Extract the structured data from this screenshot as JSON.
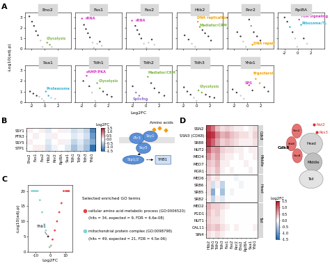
{
  "panel_labels": [
    "A",
    "B",
    "C",
    "D"
  ],
  "A_axis_labels": {
    "x": "Log2FC",
    "y": "-Log10(adj.p)"
  },
  "chart_data": [
    {
      "type": "scatter",
      "title": "Eno2",
      "tick_labels": "y",
      "x": [
        -2.3,
        -1.9,
        -1.6,
        -1.3,
        -1.0,
        -0.6,
        0.4,
        0.8,
        -0.3,
        1.1
      ],
      "y": [
        3.1,
        2.6,
        2.2,
        1.7,
        1.3,
        0.8,
        0.6,
        0.4,
        0.2,
        0.2
      ],
      "colors": [
        "#3d3d3d",
        "#3d3d3d",
        "#3d3d3d",
        "#3d3d3d",
        "#3d3d3d",
        "#c9c9c9",
        "#7cb342",
        "#7cb342",
        "#c9c9c9",
        "#c9c9c9"
      ],
      "xlim": [
        -3,
        4
      ],
      "ylim": [
        0,
        3.5
      ],
      "xticks": [
        -2,
        0,
        2
      ],
      "yticks": [
        0,
        1,
        2,
        3
      ],
      "annotations": [
        {
          "text": "Glycolysis",
          "x": 0.3,
          "y": 0.9,
          "color": "#7cb342"
        }
      ]
    },
    {
      "type": "scatter",
      "title": "Fas1",
      "tick_labels": false,
      "x": [
        -2.0,
        -1.7,
        -1.4,
        -1.1,
        -0.8,
        -0.4,
        0.3,
        0.7,
        1.0,
        -0.2
      ],
      "y": [
        2.9,
        2.3,
        1.9,
        1.5,
        1.1,
        0.6,
        0.5,
        0.7,
        0.3,
        0.1
      ],
      "colors": [
        "#d633c2",
        "#3d3d3d",
        "#3d3d3d",
        "#3d3d3d",
        "#3d3d3d",
        "#c9c9c9",
        "#c9c9c9",
        "#3d3d3d",
        "#c9c9c9",
        "#c9c9c9"
      ],
      "xlim": [
        -3,
        4
      ],
      "ylim": [
        0,
        3.5
      ],
      "xticks": [
        -2,
        0,
        2
      ],
      "yticks": [
        0,
        1,
        2,
        3
      ],
      "annotations": [
        {
          "text": "rRNA",
          "x": -1.5,
          "y": 2.8,
          "color": "#d633c2"
        }
      ]
    },
    {
      "type": "scatter",
      "title": "Fas2",
      "tick_labels": false,
      "x": [
        -2.1,
        -1.6,
        -1.3,
        -1.0,
        -0.7,
        -0.3,
        0.4,
        0.9,
        1.3,
        0.1
      ],
      "y": [
        2.7,
        2.2,
        1.8,
        1.4,
        1.0,
        0.5,
        0.6,
        0.9,
        0.4,
        0.1
      ],
      "colors": [
        "#d633c2",
        "#3d3d3d",
        "#3d3d3d",
        "#3d3d3d",
        "#3d3d3d",
        "#c9c9c9",
        "#c9c9c9",
        "#3d3d3d",
        "#c9c9c9",
        "#c9c9c9"
      ],
      "xlim": [
        -3,
        4
      ],
      "ylim": [
        0,
        3.5
      ],
      "xticks": [
        -2,
        0,
        2
      ],
      "yticks": [
        0,
        1,
        2,
        3
      ],
      "annotations": [
        {
          "text": "rRNA",
          "x": -1.6,
          "y": 2.6,
          "color": "#d633c2"
        }
      ]
    },
    {
      "type": "scatter",
      "title": "Htb2",
      "tick_labels": false,
      "x": [
        -1.8,
        -1.2,
        -0.7,
        0.2,
        0.5,
        0.9,
        1.3,
        1.8,
        2.2,
        -0.2
      ],
      "y": [
        1.3,
        0.9,
        0.5,
        2.6,
        2.1,
        1.8,
        1.5,
        1.2,
        0.8,
        0.2
      ],
      "colors": [
        "#3d3d3d",
        "#3d3d3d",
        "#c9c9c9",
        "#f0a000",
        "#7cb342",
        "#3d3d3d",
        "#3d3d3d",
        "#3d3d3d",
        "#3d3d3d",
        "#c9c9c9"
      ],
      "xlim": [
        -3,
        4
      ],
      "ylim": [
        0,
        3.5
      ],
      "xticks": [
        -2,
        0,
        2
      ],
      "yticks": [
        0,
        1,
        2,
        3
      ],
      "annotations": [
        {
          "text": "DNA replication",
          "x": 0.1,
          "y": 2.9,
          "color": "#f0a000"
        },
        {
          "text": "Mediator/CRM",
          "x": 0.4,
          "y": 2.2,
          "color": "#7cb342"
        }
      ]
    },
    {
      "type": "scatter",
      "title": "Rnr2",
      "tick_labels": false,
      "x": [
        -1.5,
        -1.0,
        -0.6,
        0.3,
        0.6,
        1.0,
        1.5,
        2.0,
        -0.2,
        0.8
      ],
      "y": [
        1.6,
        1.2,
        0.7,
        2.8,
        2.2,
        1.6,
        1.2,
        0.8,
        0.2,
        0.4
      ],
      "colors": [
        "#3d3d3d",
        "#3d3d3d",
        "#c9c9c9",
        "#3d3d3d",
        "#7cb342",
        "#3d3d3d",
        "#3d3d3d",
        "#3d3d3d",
        "#c9c9c9",
        "#f0a000"
      ],
      "xlim": [
        -3,
        4
      ],
      "ylim": [
        0,
        3.5
      ],
      "xticks": [
        -2,
        0,
        2
      ],
      "yticks": [
        0,
        1,
        2,
        3
      ],
      "annotations": [
        {
          "text": "DNA repair",
          "x": 0.9,
          "y": 0.45,
          "color": "#f0a000"
        }
      ]
    },
    {
      "type": "scatter",
      "title": "Rpl8A",
      "tick_labels": "x",
      "x": [
        -2.0,
        -1.6,
        -1.2,
        -0.8,
        -0.4,
        0.2,
        0.5,
        0.9,
        1.4,
        -0.1
      ],
      "y": [
        3.0,
        2.6,
        2.1,
        1.6,
        1.0,
        2.8,
        2.3,
        1.0,
        0.5,
        0.2
      ],
      "colors": [
        "#3d3d3d",
        "#3d3d3d",
        "#2fb3d3",
        "#3d3d3d",
        "#c9c9c9",
        "#d633c2",
        "#2fb3d3",
        "#3d3d3d",
        "#c9c9c9",
        "#c9c9c9"
      ],
      "xlim": [
        -3,
        4
      ],
      "ylim": [
        0,
        3.5
      ],
      "xticks": [
        -2,
        0,
        2
      ],
      "yticks": [
        0,
        1,
        2,
        3
      ],
      "annotations": [
        {
          "text": "TOR signaling",
          "x": 0.4,
          "y": 3.0,
          "color": "#d633c2"
        },
        {
          "text": "Ribosome/TL",
          "x": 0.6,
          "y": 2.35,
          "color": "#2fb3d3"
        }
      ]
    },
    {
      "type": "scatter",
      "title": "Ssa1",
      "tick_labels": true,
      "x": [
        -2.2,
        -1.7,
        -1.2,
        -0.8,
        -0.4,
        0.2,
        0.6,
        1.0,
        1.6,
        -0.1
      ],
      "y": [
        1.0,
        0.8,
        0.6,
        0.5,
        0.3,
        1.0,
        0.6,
        0.4,
        0.3,
        0.1
      ],
      "colors": [
        "#3d3d3d",
        "#3d3d3d",
        "#3d3d3d",
        "#c9c9c9",
        "#c9c9c9",
        "#2fb3d3",
        "#2fb3d3",
        "#c9c9c9",
        "#c9c9c9",
        "#c9c9c9"
      ],
      "xlim": [
        -3,
        4
      ],
      "ylim": [
        0,
        3.5
      ],
      "xticks": [
        -2,
        0,
        2
      ],
      "yticks": [
        0,
        1,
        2,
        3
      ],
      "annotations": [
        {
          "text": "Proteasome",
          "x": 0.3,
          "y": 1.2,
          "color": "#2fb3d3"
        }
      ]
    },
    {
      "type": "scatter",
      "title": "Tdh1",
      "tick_labels": "x",
      "x": [
        -1.8,
        -1.3,
        -0.9,
        -0.5,
        0.3,
        0.7,
        1.2,
        1.8,
        2.5,
        0.0
      ],
      "y": [
        2.0,
        2.5,
        1.5,
        0.9,
        1.8,
        1.3,
        1.0,
        0.7,
        0.5,
        0.1
      ],
      "colors": [
        "#3d3d3d",
        "#d633c2",
        "#3d3d3d",
        "#c9c9c9",
        "#7cb342",
        "#7cb342",
        "#3d3d3d",
        "#3d3d3d",
        "#3d3d3d",
        "#c9c9c9"
      ],
      "xlim": [
        -3,
        4
      ],
      "ylim": [
        0,
        3.5
      ],
      "xticks": [
        -2,
        0,
        2
      ],
      "yticks": [
        0,
        1,
        2,
        3
      ],
      "annotations": [
        {
          "text": "cAMP/PKA",
          "x": -1.4,
          "y": 2.8,
          "color": "#d633c2"
        },
        {
          "text": "Glycolysis",
          "x": 0.5,
          "y": 1.9,
          "color": "#7cb342"
        }
      ]
    },
    {
      "type": "scatter",
      "title": "Tdh2",
      "tick_labels": "x",
      "x": [
        -2.0,
        -1.5,
        -1.0,
        -0.5,
        0.3,
        0.8,
        1.3,
        2.0,
        2.8,
        0.1
      ],
      "y": [
        1.5,
        0.9,
        0.6,
        0.4,
        2.4,
        1.8,
        1.3,
        0.9,
        0.6,
        0.1
      ],
      "colors": [
        "#3d3d3d",
        "#8e6fd1",
        "#8e6fd1",
        "#c9c9c9",
        "#7cb342",
        "#3d3d3d",
        "#3d3d3d",
        "#3d3d3d",
        "#3d3d3d",
        "#c9c9c9"
      ],
      "xlim": [
        -3,
        4
      ],
      "ylim": [
        0,
        3.5
      ],
      "xticks": [
        -2,
        0,
        2
      ],
      "yticks": [
        0,
        1,
        2,
        3
      ],
      "annotations": [
        {
          "text": "Mediator/CRM",
          "x": 0.3,
          "y": 2.7,
          "color": "#7cb342"
        },
        {
          "text": "Splicing",
          "x": -2.0,
          "y": 0.2,
          "color": "#8e6fd1"
        }
      ]
    },
    {
      "type": "scatter",
      "title": "Tdh3",
      "tick_labels": "x",
      "x": [
        -1.9,
        -1.4,
        -0.9,
        -0.4,
        0.3,
        0.8,
        1.4,
        2.0,
        2.7,
        0.0
      ],
      "y": [
        1.4,
        1.0,
        0.7,
        0.4,
        1.1,
        0.9,
        0.7,
        0.5,
        0.4,
        0.1
      ],
      "colors": [
        "#3d3d3d",
        "#3d3d3d",
        "#3d3d3d",
        "#c9c9c9",
        "#7cb342",
        "#7cb342",
        "#3d3d3d",
        "#3d3d3d",
        "#3d3d3d",
        "#c9c9c9"
      ],
      "xlim": [
        -3,
        4
      ],
      "ylim": [
        0,
        3.5
      ],
      "xticks": [
        -2,
        0,
        2
      ],
      "yticks": [
        0,
        1,
        2,
        3
      ],
      "annotations": [
        {
          "text": "Glycolysis",
          "x": 0.5,
          "y": 1.4,
          "color": "#7cb342"
        }
      ]
    },
    {
      "type": "scatter",
      "title": "Yhb1",
      "tick_labels": "x",
      "x": [
        -2.2,
        -1.6,
        -1.0,
        -0.5,
        0.3,
        0.8,
        1.3,
        1.9,
        2.6,
        3.2
      ],
      "y": [
        1.2,
        0.9,
        0.6,
        0.3,
        1.6,
        1.1,
        2.2,
        1.8,
        1.4,
        1.0
      ],
      "colors": [
        "#3d3d3d",
        "#3d3d3d",
        "#c9c9c9",
        "#c9c9c9",
        "#d633c2",
        "#3d3d3d",
        "#f0a000",
        "#f0a000",
        "#3d3d3d",
        "#3d3d3d"
      ],
      "xlim": [
        -3,
        4
      ],
      "ylim": [
        0,
        3.5
      ],
      "xticks": [
        -2,
        0,
        2
      ],
      "yticks": [
        0,
        1,
        2,
        3
      ],
      "annotations": [
        {
          "text": "Ergosterol",
          "x": 0.9,
          "y": 2.6,
          "color": "#f0a000"
        },
        {
          "text": "SPS",
          "x": -0.4,
          "y": 1.7,
          "color": "#d633c2"
        }
      ]
    },
    {
      "type": "heatmap",
      "rows": [
        "SSY1",
        "PTR3",
        "SSY5",
        "STP1"
      ],
      "columns": [
        "Eno2",
        "Fas1",
        "Fas2",
        "Htb2",
        "Rnr2",
        "Rpl8A",
        "Ssa1",
        "Tdh1",
        "Tdh2",
        "Tdh3",
        "Yhb1"
      ],
      "cells": [
        [
          0.1,
          0.0,
          0.1,
          -0.2,
          0.0,
          0.1,
          -0.1,
          -0.3,
          -0.2,
          -0.4,
          -1.2
        ],
        [
          0.0,
          0.1,
          0.0,
          -0.1,
          0.1,
          0.0,
          0.0,
          -0.2,
          -0.1,
          -0.3,
          -1.0
        ],
        [
          0.1,
          0.0,
          0.0,
          -0.2,
          0.0,
          0.1,
          -0.1,
          -0.4,
          -0.2,
          -0.5,
          -0.8
        ],
        [
          0.0,
          0.1,
          0.1,
          -0.3,
          -0.1,
          0.0,
          -0.2,
          -0.6,
          -0.3,
          -0.6,
          -1.4
        ]
      ],
      "colorbar": {
        "label": "Log2FC",
        "range": [
          -1.5,
          1.5
        ],
        "ticks": [
          1.5,
          {
            "value": 1,
            "label": "1.0"
          },
          0.5,
          {
            "value": 0,
            "label": "0.0"
          },
          -0.5,
          {
            "value": -1,
            "label": "-1.0"
          },
          -1.5
        ]
      }
    },
    {
      "type": "scatter",
      "xlabel": "Log2FC",
      "ylabel": "-Log10(adj.p)",
      "tick_labels": true,
      "x": [
        -12.5,
        -11.5,
        -10.5,
        -9.5,
        -8.5,
        -7,
        -5.5,
        -4,
        -3,
        -1.5,
        -0.5,
        0.5,
        1.5,
        3,
        4.5,
        6,
        7.5,
        9,
        10.5,
        11.5,
        12.5
      ],
      "y": [
        20,
        20,
        20,
        20,
        20,
        17,
        13,
        9,
        7,
        5,
        1.5,
        2,
        4,
        7,
        10,
        13,
        16,
        20,
        20,
        20,
        20
      ],
      "colors": [
        "#7fd4cf",
        "#7fd4cf",
        "#7fd4cf",
        "#7fd4cf",
        "#7fd4cf",
        "#7fd4cf",
        "#7fd4cf",
        "#7fd4cf",
        "#7fd4cf",
        "#333333",
        "#9fbfa8",
        "#9fbfa8",
        "#e8413c",
        "#e8413c",
        "#e8413c",
        "#e8413c",
        "#e8413c",
        "#e8413c",
        "#e8413c",
        "#e8413c",
        "#e8413c"
      ],
      "xlim": [
        -15,
        15
      ],
      "ylim": [
        0,
        22
      ],
      "xticks": [
        -10,
        0,
        10
      ],
      "yticks": [
        0,
        5,
        10,
        15,
        20
      ],
      "annotations": [
        {
          "text": "Yhb1",
          "x": -1.5,
          "y": 5,
          "color": "#000000"
        }
      ],
      "legend_title": "Selected enriched GO terms",
      "legend_entries": [
        {
          "label": "cellular amino acid metabolic process (GO:0006520)",
          "detail": "(hits = 34, expected = 9, FDR = 6.6e-08)",
          "color": "#e8413c"
        },
        {
          "label": "mitochondrial protein complex (GO:0098798)",
          "detail": "(hits = 49, expected = 21, FDR = 4.5e-06)",
          "color": "#7fd4cf"
        }
      ]
    },
    {
      "type": "heatmap",
      "columns": [
        "Htb2",
        "Tdh1",
        "Tdh2",
        "Tdh3",
        "Fas1",
        "Fas2",
        "Rnr2",
        "Eno2",
        "Rpl8A",
        "Ssa1",
        "Yhb1"
      ],
      "groups": [
        {
          "name": "Cdk8",
          "rows": [
            "SSN2",
            "SSN3 (CDK8)",
            "SRB8"
          ]
        },
        {
          "name": "Middle",
          "rows": [
            "NUT2",
            "MED4",
            "MED7",
            "RGR1"
          ]
        },
        {
          "name": "Head",
          "rows": [
            "MED6",
            "SRB6",
            "SRB5",
            "SRB2"
          ]
        },
        {
          "name": "Tail",
          "rows": [
            "MED2",
            "PGD1",
            "NUT1",
            "GAL11",
            "SIN4"
          ]
        }
      ],
      "cells": [
        [
          1.2,
          0.9,
          0.4,
          0.2,
          0.3,
          0.2,
          0.1,
          0.1,
          0.0,
          0.1,
          0.2
        ],
        [
          1.4,
          1.3,
          0.8,
          0.5,
          0.6,
          0.4,
          0.3,
          0.2,
          0.2,
          0.1,
          0.3
        ],
        [
          1.3,
          1.0,
          0.6,
          0.3,
          0.4,
          0.3,
          0.2,
          0.1,
          0.1,
          0.1,
          0.2
        ],
        [
          1.0,
          0.6,
          0.7,
          0.3,
          0.2,
          0.2,
          0.1,
          0.1,
          0.0,
          0.1,
          0.1
        ],
        [
          0.7,
          0.4,
          0.6,
          0.2,
          0.1,
          0.1,
          0.0,
          0.1,
          0.0,
          0.0,
          0.1
        ],
        [
          0.4,
          0.3,
          0.5,
          0.1,
          0.1,
          0.0,
          0.0,
          0.0,
          0.1,
          0.0,
          0.0
        ],
        [
          0.3,
          0.2,
          0.4,
          0.1,
          0.0,
          0.1,
          0.0,
          0.0,
          0.0,
          0.1,
          0.0
        ],
        [
          0.3,
          0.1,
          0.2,
          0.0,
          0.0,
          0.0,
          -0.1,
          0.0,
          0.0,
          0.0,
          0.0
        ],
        [
          0.2,
          -0.3,
          0.1,
          -0.4,
          0.0,
          0.0,
          0.0,
          -0.1,
          0.0,
          0.0,
          0.0
        ],
        [
          0.2,
          -0.8,
          0.0,
          -0.6,
          0.0,
          -0.1,
          0.0,
          0.0,
          0.0,
          0.0,
          0.0
        ],
        [
          0.1,
          -0.4,
          0.1,
          -0.2,
          0.0,
          0.0,
          0.0,
          0.0,
          0.0,
          0.0,
          0.0
        ],
        [
          0.5,
          0.3,
          0.3,
          0.2,
          0.1,
          0.0,
          0.0,
          0.0,
          0.0,
          0.0,
          0.0
        ],
        [
          0.4,
          0.2,
          0.3,
          0.1,
          0.0,
          0.0,
          0.0,
          0.0,
          0.0,
          0.0,
          0.0
        ],
        [
          0.3,
          0.2,
          0.2,
          0.1,
          0.0,
          0.0,
          0.0,
          0.0,
          0.0,
          0.0,
          0.0
        ],
        [
          0.4,
          0.3,
          0.4,
          0.2,
          0.1,
          0.0,
          0.1,
          0.0,
          0.0,
          0.0,
          0.1
        ],
        [
          0.2,
          0.1,
          0.2,
          0.1,
          0.0,
          0.0,
          0.0,
          0.0,
          0.0,
          0.0,
          0.0
        ]
      ],
      "colorbar": {
        "label": "Log2FC",
        "range": [
          -1.5,
          1.5
        ],
        "ticks": [
          1.5,
          {
            "value": 1,
            "label": "1.0"
          },
          0.5,
          {
            "value": 0,
            "label": "0.0"
          },
          -0.5,
          {
            "value": -1,
            "label": "-1.0"
          },
          -1.5
        ]
      }
    }
  ],
  "diagram_B": {
    "ligand": "Amino acids",
    "membrane_proteins": [
      "Ptr3",
      "Ssy1",
      "Ssy5"
    ],
    "factor": "Stp1/2",
    "target": "YHB1"
  },
  "diagram_D": {
    "module": "Cdk8",
    "module_subunits": [
      "Ssn2",
      "Srb8",
      "Ssn8"
    ],
    "parts": [
      "Head",
      "Middle",
      "Tail"
    ],
    "marked": [
      "Nut2",
      "Rox3"
    ]
  }
}
